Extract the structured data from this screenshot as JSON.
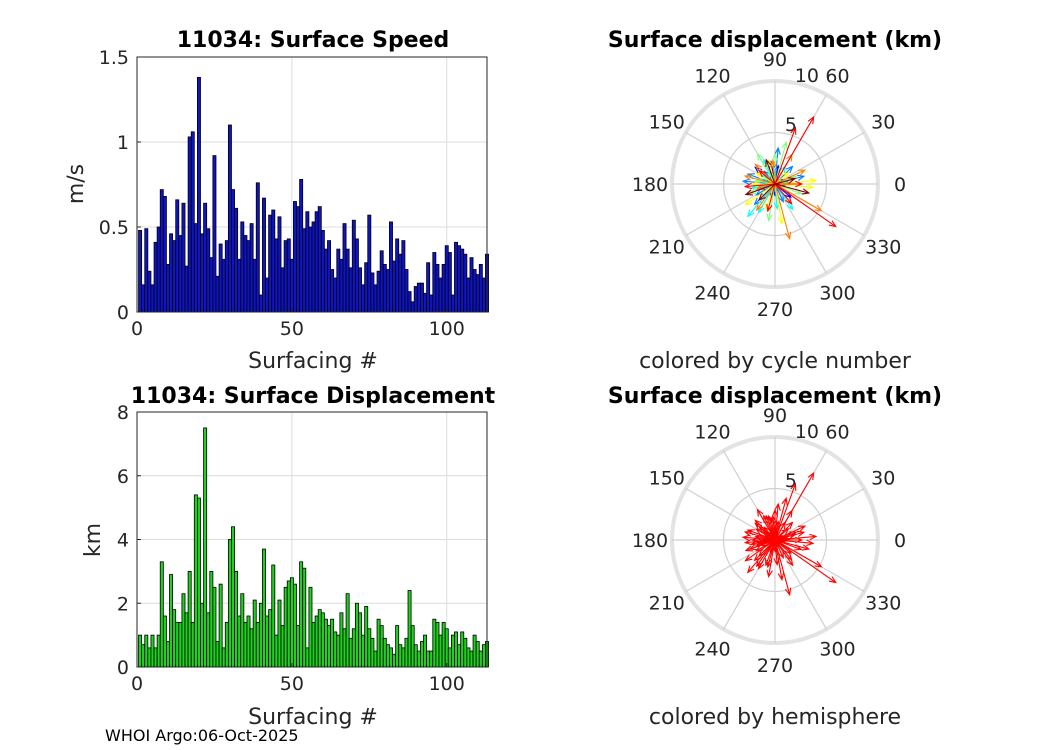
{
  "footer": "WHOI Argo:06-Oct-2025",
  "chart_data": [
    {
      "id": "speed",
      "type": "bar",
      "title": "11034: Surface Speed",
      "xlabel": "Surfacing #",
      "ylabel": "m/s",
      "xlim": [
        0,
        113
      ],
      "ylim": [
        0,
        1.5
      ],
      "xticks": [
        0,
        50,
        100
      ],
      "yticks": [
        0,
        0.5,
        1,
        1.5
      ],
      "ytick_labels": [
        "0",
        "0.5",
        "1",
        "1.5"
      ],
      "bar_color": "#0f14c8",
      "values": [
        0.48,
        0.16,
        0.49,
        0.24,
        0.16,
        0.41,
        0.5,
        0.72,
        0.68,
        0.28,
        0.46,
        0.42,
        0.66,
        0.45,
        0.64,
        0.27,
        1.03,
        1.06,
        0.52,
        1.38,
        0.46,
        0.64,
        0.49,
        0.32,
        0.92,
        0.21,
        0.4,
        0.31,
        0.42,
        1.1,
        0.72,
        0.61,
        0.31,
        0.53,
        0.45,
        0.42,
        0.52,
        0.31,
        0.76,
        0.1,
        0.67,
        0.2,
        0.57,
        0.6,
        0.43,
        0.56,
        0.26,
        0.42,
        0.43,
        0.31,
        0.65,
        0.62,
        0.78,
        0.49,
        0.59,
        0.5,
        0.53,
        0.59,
        0.62,
        0.48,
        0.37,
        0.42,
        0.25,
        0.2,
        0.37,
        0.31,
        0.52,
        0.37,
        0.26,
        0.54,
        0.43,
        0.26,
        0.16,
        0.29,
        0.57,
        0.23,
        0.16,
        0.24,
        0.36,
        0.28,
        0.25,
        0.53,
        0.3,
        0.43,
        0.34,
        0.42,
        0.25,
        0.12,
        0.06,
        0.15,
        0.17,
        0.17,
        0.11,
        0.29,
        0.1,
        0.35,
        0.28,
        0.2,
        0.28,
        0.39,
        0.35,
        0.1,
        0.41,
        0.39,
        0.37,
        0.34,
        0.2,
        0.32,
        0.25,
        0.22,
        0.28,
        0.2,
        0.34
      ]
    },
    {
      "id": "displacement",
      "type": "bar",
      "title": "11034: Surface Displacement",
      "xlabel": "Surfacing #",
      "ylabel": "km",
      "xlim": [
        0,
        113
      ],
      "ylim": [
        0,
        8
      ],
      "xticks": [
        0,
        50,
        100
      ],
      "yticks": [
        0,
        2,
        4,
        6,
        8
      ],
      "ytick_labels": [
        "0",
        "2",
        "4",
        "6",
        "8"
      ],
      "bar_color": "#1ed21e",
      "values": [
        1.0,
        0.7,
        1.0,
        0.6,
        1.0,
        0.6,
        1.0,
        3.3,
        1.6,
        0.8,
        2.9,
        1.8,
        1.4,
        1.4,
        2.3,
        1.7,
        3.0,
        1.4,
        5.4,
        5.3,
        2.0,
        7.5,
        1.7,
        3.0,
        2.5,
        0.8,
        2.6,
        0.6,
        1.4,
        4.0,
        4.4,
        3.0,
        1.6,
        2.3,
        1.4,
        1.6,
        1.2,
        2.1,
        1.4,
        2.0,
        3.7,
        1.6,
        1.8,
        3.2,
        1.0,
        2.1,
        1.3,
        2.5,
        2.7,
        2.8,
        2.6,
        1.3,
        3.3,
        3.1,
        0.6,
        2.5,
        1.4,
        1.6,
        1.8,
        1.7,
        1.5,
        1.3,
        1.5,
        1.1,
        1.0,
        1.7,
        1.2,
        2.3,
        0.9,
        1.2,
        2.0,
        1.7,
        1.0,
        1.9,
        1.2,
        0.9,
        0.5,
        1.5,
        1.3,
        0.9,
        0.7,
        0.6,
        0.4,
        1.3,
        0.7,
        0.6,
        0.9,
        2.4,
        1.3,
        0.7,
        0.5,
        0.8,
        1.0,
        0.5,
        0.5,
        1.5,
        1.4,
        1.0,
        1.4,
        1.2,
        0.6,
        1.0,
        1.1,
        0.7,
        1.1,
        0.9,
        0.6,
        0.5,
        1.0,
        0.8,
        0.5,
        0.7,
        0.8
      ]
    },
    {
      "id": "polar-cycle",
      "type": "scatter",
      "title": "Surface displacement (km)",
      "caption": "colored by cycle number",
      "rmax": 10,
      "rticks": [
        5,
        10
      ],
      "angle_ticks": [
        0,
        30,
        60,
        90,
        120,
        150,
        180,
        210,
        240,
        270,
        300,
        330
      ],
      "color_scale": [
        "#00007f",
        "#0000ff",
        "#007fff",
        "#00ffff",
        "#7fff7f",
        "#ffff00",
        "#ff7f00",
        "#ff0000",
        "#7f0000"
      ],
      "arrows": [
        {
          "a": 110,
          "r": 1.2
        },
        {
          "a": 160,
          "r": 1.0
        },
        {
          "a": 200,
          "r": 1.5
        },
        {
          "a": 30,
          "r": 0.8
        },
        {
          "a": 350,
          "r": 0.9
        },
        {
          "a": 250,
          "r": 1.3
        },
        {
          "a": 80,
          "r": 1.8
        },
        {
          "a": 140,
          "r": 2.5
        },
        {
          "a": 190,
          "r": 1.7
        },
        {
          "a": 5,
          "r": 1.4
        },
        {
          "a": 320,
          "r": 2.0
        },
        {
          "a": 270,
          "r": 1.1
        },
        {
          "a": 100,
          "r": 2.2
        },
        {
          "a": 225,
          "r": 2.8
        },
        {
          "a": 45,
          "r": 2.4
        },
        {
          "a": 175,
          "r": 3.1
        },
        {
          "a": 130,
          "r": 1.6
        },
        {
          "a": 15,
          "r": 2.9
        },
        {
          "a": 295,
          "r": 1.9
        },
        {
          "a": 210,
          "r": 2.1
        },
        {
          "a": 85,
          "r": 3.5
        },
        {
          "a": 160,
          "r": 2.8
        },
        {
          "a": 240,
          "r": 3.2
        },
        {
          "a": 10,
          "r": 1.1
        },
        {
          "a": 115,
          "r": 2.6
        },
        {
          "a": 190,
          "r": 2.3
        },
        {
          "a": 275,
          "r": 2.4
        },
        {
          "a": 60,
          "r": 2.0
        },
        {
          "a": 145,
          "r": 1.4
        },
        {
          "a": 305,
          "r": 3.0
        },
        {
          "a": 230,
          "r": 4.1
        },
        {
          "a": 75,
          "r": 4.2
        },
        {
          "a": 170,
          "r": 1.9
        },
        {
          "a": 20,
          "r": 2.2
        },
        {
          "a": 260,
          "r": 3.6
        },
        {
          "a": 120,
          "r": 3.4
        },
        {
          "a": 200,
          "r": 2.6
        },
        {
          "a": 340,
          "r": 2.7
        },
        {
          "a": 90,
          "r": 2.9
        },
        {
          "a": 180,
          "r": 2.2
        },
        {
          "a": 355,
          "r": 3.7
        },
        {
          "a": 150,
          "r": 2.1
        },
        {
          "a": 280,
          "r": 3.9
        },
        {
          "a": 40,
          "r": 1.7
        },
        {
          "a": 215,
          "r": 3.5
        },
        {
          "a": 105,
          "r": 2.4
        },
        {
          "a": 250,
          "r": 2.6
        },
        {
          "a": 5,
          "r": 4.0
        },
        {
          "a": 165,
          "r": 3.0
        },
        {
          "a": 330,
          "r": 5.2
        },
        {
          "a": 60,
          "r": 3.3
        },
        {
          "a": 195,
          "r": 1.8
        },
        {
          "a": 285,
          "r": 5.5
        },
        {
          "a": 135,
          "r": 2.7
        },
        {
          "a": 235,
          "r": 3.1
        },
        {
          "a": 25,
          "r": 3.2
        },
        {
          "a": 95,
          "r": 2.3
        },
        {
          "a": 185,
          "r": 2.9
        },
        {
          "a": 310,
          "r": 2.5
        },
        {
          "a": 70,
          "r": 5.8
        },
        {
          "a": 140,
          "r": 2.0
        },
        {
          "a": 255,
          "r": 2.7
        },
        {
          "a": 0,
          "r": 2.6
        },
        {
          "a": 325,
          "r": 7.2
        },
        {
          "a": 60,
          "r": 7.5
        },
        {
          "a": 200,
          "r": 3.0
        },
        {
          "a": 345,
          "r": 3.4
        },
        {
          "a": 110,
          "r": 2.5
        },
        {
          "a": 225,
          "r": 2.2
        },
        {
          "a": 15,
          "r": 2.0
        }
      ]
    },
    {
      "id": "polar-hemisphere",
      "type": "scatter",
      "title": "Surface displacement (km)",
      "caption": "colored by hemisphere",
      "rmax": 10,
      "rticks": [
        5,
        10
      ],
      "angle_ticks": [
        0,
        30,
        60,
        90,
        120,
        150,
        180,
        210,
        240,
        270,
        300,
        330
      ],
      "arrow_color": "#ff0000"
    }
  ]
}
